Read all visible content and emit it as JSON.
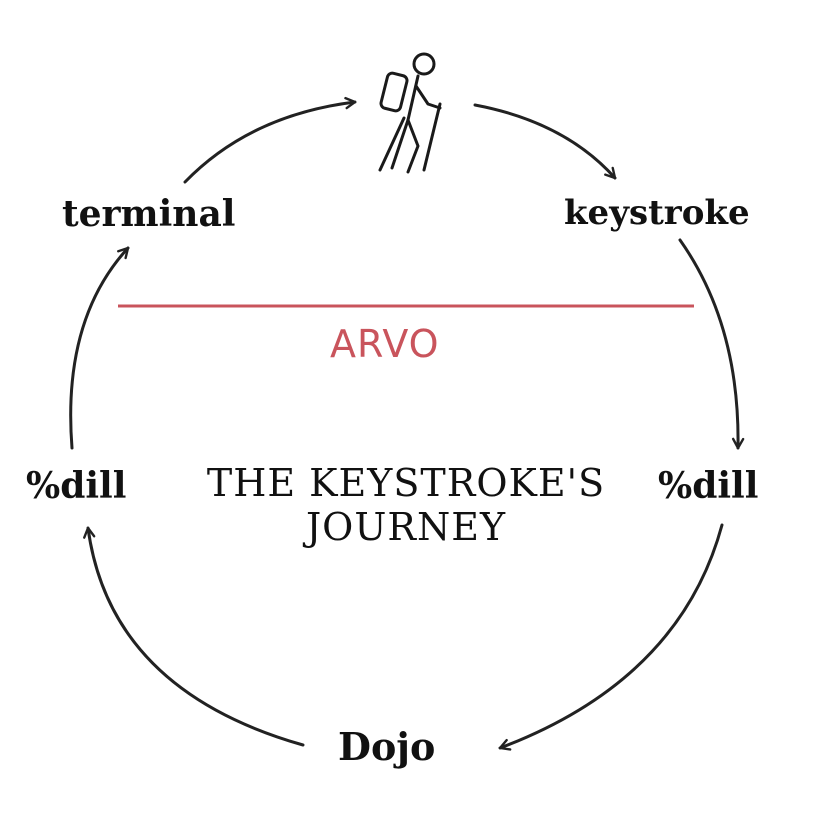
{
  "diagram": {
    "title_line1": "THE KEYSTROKE'S",
    "title_line2": "JOURNEY",
    "divider_label": "ARVO",
    "accent_color": "#c9545c",
    "ink_color": "#111111",
    "top_icon": "hiker-icon",
    "nodes": {
      "terminal": "terminal",
      "keystroke": "keystroke",
      "dill_right": "%dill",
      "dojo": "Dojo",
      "dill_left": "%dill"
    }
  }
}
